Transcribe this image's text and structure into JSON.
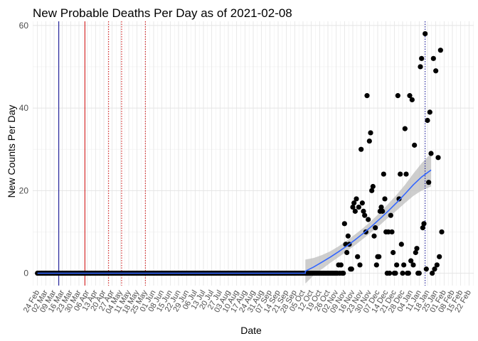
{
  "chart_data": {
    "type": "scatter",
    "title": "New Probable Deaths Per Day as of 2021-02-08",
    "xlabel": "Date",
    "ylabel": "New Counts Per Day",
    "xlim": [
      "2020-02-20",
      "2021-02-26"
    ],
    "ylim": [
      -3,
      61
    ],
    "y_ticks": [
      0,
      20,
      40,
      60
    ],
    "x_ticks": [
      "2020-02-24",
      "2020-03-02",
      "2020-03-09",
      "2020-03-16",
      "2020-03-23",
      "2020-03-30",
      "2020-04-06",
      "2020-04-13",
      "2020-04-20",
      "2020-04-27",
      "2020-05-04",
      "2020-05-11",
      "2020-05-18",
      "2020-05-25",
      "2020-06-01",
      "2020-06-08",
      "2020-06-15",
      "2020-06-22",
      "2020-06-29",
      "2020-07-06",
      "2020-07-13",
      "2020-07-20",
      "2020-07-27",
      "2020-08-03",
      "2020-08-10",
      "2020-08-17",
      "2020-08-24",
      "2020-08-31",
      "2020-09-07",
      "2020-09-14",
      "2020-09-21",
      "2020-09-28",
      "2020-10-05",
      "2020-10-12",
      "2020-10-19",
      "2020-10-26",
      "2020-11-02",
      "2020-11-09",
      "2020-11-16",
      "2020-11-23",
      "2020-11-30",
      "2020-12-07",
      "2020-12-14",
      "2020-12-21",
      "2020-12-28",
      "2021-01-04",
      "2021-01-11",
      "2021-01-18",
      "2021-01-25",
      "2021-02-01",
      "2021-02-08",
      "2021-02-15",
      "2021-02-22"
    ],
    "x_tick_labels": [
      "24 Feb",
      "02 Mar",
      "09 Mar",
      "16 Mar",
      "23 Mar",
      "30 Mar",
      "06 Apr",
      "13 Apr",
      "20 Apr",
      "27 Apr",
      "04 May",
      "11 May",
      "18 May",
      "25 May",
      "01 Jun",
      "08 Jun",
      "15 Jun",
      "22 Jun",
      "29 Jun",
      "06 Jul",
      "13 Jul",
      "20 Jul",
      "27 Jul",
      "03 Aug",
      "10 Aug",
      "17 Aug",
      "24 Aug",
      "31 Aug",
      "07 Sep",
      "14 Sep",
      "21 Sep",
      "28 Sep",
      "05 Oct",
      "12 Oct",
      "19 Oct",
      "26 Oct",
      "02 Nov",
      "09 Nov",
      "16 Nov",
      "23 Nov",
      "30 Nov",
      "07 Dec",
      "14 Dec",
      "21 Dec",
      "28 Dec",
      "04 Jan",
      "11 Jan",
      "18 Jan",
      "25 Jan",
      "01 Feb",
      "08 Feb",
      "15 Feb",
      "22 Feb"
    ],
    "grid": true,
    "zero_series": {
      "start": "2020-02-24",
      "end": "2020-10-26",
      "value": 0
    },
    "points": [
      {
        "x": "2020-10-27",
        "y": 0
      },
      {
        "x": "2020-10-28",
        "y": 0
      },
      {
        "x": "2020-10-29",
        "y": 0
      },
      {
        "x": "2020-10-30",
        "y": 0
      },
      {
        "x": "2020-10-31",
        "y": 0
      },
      {
        "x": "2020-11-01",
        "y": 0
      },
      {
        "x": "2020-11-02",
        "y": 0
      },
      {
        "x": "2020-11-03",
        "y": 0
      },
      {
        "x": "2020-11-04",
        "y": 2
      },
      {
        "x": "2020-11-05",
        "y": 0
      },
      {
        "x": "2020-11-06",
        "y": 2
      },
      {
        "x": "2020-11-07",
        "y": 0
      },
      {
        "x": "2020-11-08",
        "y": 0
      },
      {
        "x": "2020-11-09",
        "y": 12
      },
      {
        "x": "2020-11-10",
        "y": 7
      },
      {
        "x": "2020-11-11",
        "y": 5
      },
      {
        "x": "2020-11-12",
        "y": 9
      },
      {
        "x": "2020-11-13",
        "y": 7
      },
      {
        "x": "2020-11-14",
        "y": 1
      },
      {
        "x": "2020-11-15",
        "y": 1
      },
      {
        "x": "2020-11-16",
        "y": 16
      },
      {
        "x": "2020-11-17",
        "y": 17
      },
      {
        "x": "2020-11-18",
        "y": 15
      },
      {
        "x": "2020-11-19",
        "y": 18
      },
      {
        "x": "2020-11-20",
        "y": 4
      },
      {
        "x": "2020-11-21",
        "y": 16
      },
      {
        "x": "2020-11-22",
        "y": 2
      },
      {
        "x": "2020-11-23",
        "y": 30
      },
      {
        "x": "2020-11-24",
        "y": 17
      },
      {
        "x": "2020-11-25",
        "y": 15
      },
      {
        "x": "2020-11-26",
        "y": 14
      },
      {
        "x": "2020-11-27",
        "y": 10
      },
      {
        "x": "2020-11-28",
        "y": 43
      },
      {
        "x": "2020-11-29",
        "y": 13
      },
      {
        "x": "2020-11-30",
        "y": 32
      },
      {
        "x": "2020-12-01",
        "y": 34
      },
      {
        "x": "2020-12-02",
        "y": 20
      },
      {
        "x": "2020-12-03",
        "y": 21
      },
      {
        "x": "2020-12-04",
        "y": 9
      },
      {
        "x": "2020-12-05",
        "y": 11
      },
      {
        "x": "2020-12-06",
        "y": 2
      },
      {
        "x": "2020-12-07",
        "y": 4
      },
      {
        "x": "2020-12-08",
        "y": 4
      },
      {
        "x": "2020-12-09",
        "y": 15
      },
      {
        "x": "2020-12-10",
        "y": 16
      },
      {
        "x": "2020-12-11",
        "y": 15
      },
      {
        "x": "2020-12-12",
        "y": 24
      },
      {
        "x": "2020-12-13",
        "y": 18
      },
      {
        "x": "2020-12-14",
        "y": 10
      },
      {
        "x": "2020-12-15",
        "y": 0
      },
      {
        "x": "2020-12-16",
        "y": 10
      },
      {
        "x": "2020-12-17",
        "y": 0
      },
      {
        "x": "2020-12-18",
        "y": 14
      },
      {
        "x": "2020-12-19",
        "y": 10
      },
      {
        "x": "2020-12-20",
        "y": 5
      },
      {
        "x": "2020-12-21",
        "y": 0
      },
      {
        "x": "2020-12-22",
        "y": 0
      },
      {
        "x": "2020-12-23",
        "y": 2
      },
      {
        "x": "2020-12-24",
        "y": 43
      },
      {
        "x": "2020-12-25",
        "y": 18
      },
      {
        "x": "2020-12-26",
        "y": 24
      },
      {
        "x": "2020-12-27",
        "y": 7
      },
      {
        "x": "2020-12-28",
        "y": 0
      },
      {
        "x": "2020-12-29",
        "y": 2
      },
      {
        "x": "2020-12-30",
        "y": 35
      },
      {
        "x": "2020-12-31",
        "y": 24
      },
      {
        "x": "2021-01-01",
        "y": 0
      },
      {
        "x": "2021-01-02",
        "y": 0
      },
      {
        "x": "2021-01-03",
        "y": 43
      },
      {
        "x": "2021-01-04",
        "y": 3
      },
      {
        "x": "2021-01-05",
        "y": 42
      },
      {
        "x": "2021-01-06",
        "y": 2
      },
      {
        "x": "2021-01-07",
        "y": 31
      },
      {
        "x": "2021-01-08",
        "y": 5
      },
      {
        "x": "2021-01-09",
        "y": 6
      },
      {
        "x": "2021-01-10",
        "y": 0
      },
      {
        "x": "2021-01-11",
        "y": 0
      },
      {
        "x": "2021-01-12",
        "y": 50
      },
      {
        "x": "2021-01-13",
        "y": 52
      },
      {
        "x": "2021-01-14",
        "y": 11
      },
      {
        "x": "2021-01-15",
        "y": 12
      },
      {
        "x": "2021-01-16",
        "y": 58
      },
      {
        "x": "2021-01-17",
        "y": 1
      },
      {
        "x": "2021-01-18",
        "y": 37
      },
      {
        "x": "2021-01-19",
        "y": 22
      },
      {
        "x": "2021-01-20",
        "y": 39
      },
      {
        "x": "2021-01-21",
        "y": 29
      },
      {
        "x": "2021-01-22",
        "y": 0
      },
      {
        "x": "2021-01-23",
        "y": 52
      },
      {
        "x": "2021-01-24",
        "y": 1
      },
      {
        "x": "2021-01-25",
        "y": 49
      },
      {
        "x": "2021-01-26",
        "y": 2
      },
      {
        "x": "2021-01-27",
        "y": 28
      },
      {
        "x": "2021-01-28",
        "y": 4
      },
      {
        "x": "2021-01-29",
        "y": 54
      },
      {
        "x": "2021-01-30",
        "y": 10
      }
    ],
    "smooth_fit": {
      "color": "#3366ff",
      "band_color": "#bdbdbd",
      "points": [
        {
          "x": "2020-10-07",
          "y": 0.5,
          "lo": -2.5,
          "hi": 3.3
        },
        {
          "x": "2020-10-14",
          "y": 1.5,
          "lo": -0.5,
          "hi": 3.7
        },
        {
          "x": "2020-10-21",
          "y": 2.7,
          "lo": 1.0,
          "hi": 4.4
        },
        {
          "x": "2020-10-28",
          "y": 3.9,
          "lo": 2.5,
          "hi": 5.3
        },
        {
          "x": "2020-11-04",
          "y": 5.2,
          "lo": 3.9,
          "hi": 6.5
        },
        {
          "x": "2020-11-11",
          "y": 6.6,
          "lo": 5.3,
          "hi": 7.9
        },
        {
          "x": "2020-11-18",
          "y": 8.1,
          "lo": 6.8,
          "hi": 9.4
        },
        {
          "x": "2020-11-25",
          "y": 9.7,
          "lo": 8.4,
          "hi": 11.0
        },
        {
          "x": "2020-12-02",
          "y": 11.4,
          "lo": 10.0,
          "hi": 12.8
        },
        {
          "x": "2020-12-09",
          "y": 13.2,
          "lo": 11.7,
          "hi": 14.7
        },
        {
          "x": "2020-12-16",
          "y": 15.1,
          "lo": 13.5,
          "hi": 16.8
        },
        {
          "x": "2020-12-23",
          "y": 17.1,
          "lo": 15.2,
          "hi": 19.0
        },
        {
          "x": "2020-12-30",
          "y": 19.2,
          "lo": 17.0,
          "hi": 21.4
        },
        {
          "x": "2021-01-06",
          "y": 21.4,
          "lo": 18.7,
          "hi": 24.1
        },
        {
          "x": "2021-01-13",
          "y": 23.3,
          "lo": 20.0,
          "hi": 26.6
        },
        {
          "x": "2021-01-21",
          "y": 25.0,
          "lo": 21.0,
          "hi": 29.0
        }
      ]
    },
    "reference_lines": [
      {
        "x": "2020-03-13",
        "color": "#00008b",
        "style": "solid"
      },
      {
        "x": "2020-04-04",
        "color": "#cc0000",
        "style": "solid"
      },
      {
        "x": "2020-04-24",
        "color": "#cc0000",
        "style": "dotted"
      },
      {
        "x": "2020-05-05",
        "color": "#cc0000",
        "style": "dotted"
      },
      {
        "x": "2020-05-25",
        "color": "#cc0000",
        "style": "dotted"
      },
      {
        "x": "2021-01-16",
        "color": "#00008b",
        "style": "dotted"
      }
    ]
  }
}
